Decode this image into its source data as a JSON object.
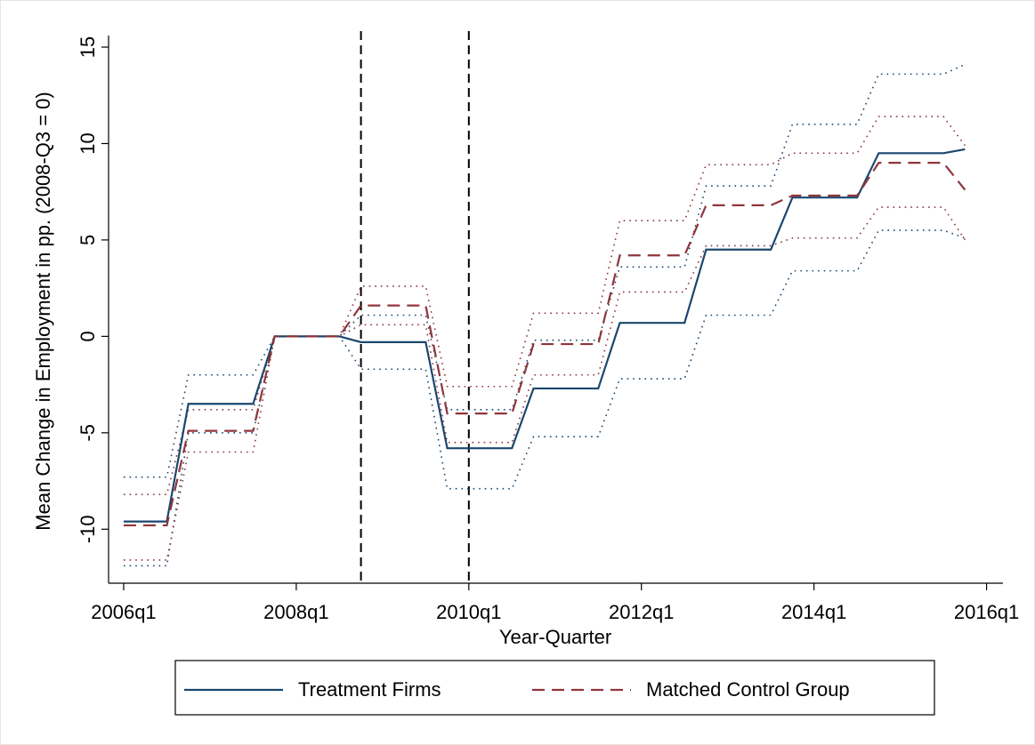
{
  "chart_data": {
    "type": "line",
    "x_label": "Year-Quarter",
    "y_label": "Mean Change in Employment in pp. (2008-Q3 = 0)",
    "x": [
      2006,
      2006.25,
      2006.5,
      2006.75,
      2007,
      2007.25,
      2007.5,
      2007.75,
      2008,
      2008.25,
      2008.5,
      2008.75,
      2009,
      2009.25,
      2009.5,
      2009.75,
      2010,
      2010.25,
      2010.5,
      2010.75,
      2011,
      2011.25,
      2011.5,
      2011.75,
      2012,
      2012.25,
      2012.5,
      2012.75,
      2013,
      2013.25,
      2013.5,
      2013.75,
      2014,
      2014.25,
      2014.5,
      2014.75,
      2015,
      2015.25,
      2015.5,
      2015.75
    ],
    "series": [
      {
        "name": "Treatment Firms",
        "color": "#1a476f",
        "dash": "solid",
        "values": [
          -9.6,
          -9.6,
          -9.6,
          -3.5,
          -3.5,
          -3.5,
          -3.5,
          0,
          0,
          0,
          0,
          -0.3,
          -0.3,
          -0.3,
          -0.3,
          -5.8,
          -5.8,
          -5.8,
          -5.8,
          -2.7,
          -2.7,
          -2.7,
          -2.7,
          0.7,
          0.7,
          0.7,
          0.7,
          4.5,
          4.5,
          4.5,
          4.5,
          7.2,
          7.2,
          7.2,
          7.2,
          9.5,
          9.5,
          9.5,
          9.5,
          9.7
        ],
        "ci_upper": [
          -7.3,
          -7.3,
          -7.3,
          -2.0,
          -2.0,
          -2.0,
          -2.0,
          0,
          0,
          0,
          0,
          1.1,
          1.1,
          1.1,
          1.1,
          -3.8,
          -3.8,
          -3.8,
          -3.8,
          -0.2,
          -0.2,
          -0.2,
          -0.2,
          3.6,
          3.6,
          3.6,
          3.6,
          7.8,
          7.8,
          7.8,
          7.8,
          11.0,
          11.0,
          11.0,
          11.0,
          13.6,
          13.6,
          13.6,
          13.6,
          14.1
        ],
        "ci_lower": [
          -11.9,
          -11.9,
          -11.9,
          -5.0,
          -5.0,
          -5.0,
          -5.0,
          0,
          0,
          0,
          0,
          -1.7,
          -1.7,
          -1.7,
          -1.7,
          -7.9,
          -7.9,
          -7.9,
          -7.9,
          -5.2,
          -5.2,
          -5.2,
          -5.2,
          -2.2,
          -2.2,
          -2.2,
          -2.2,
          1.1,
          1.1,
          1.1,
          1.1,
          3.4,
          3.4,
          3.4,
          3.4,
          5.5,
          5.5,
          5.5,
          5.5,
          5.1
        ]
      },
      {
        "name": "Matched Control Group",
        "color": "#90353b",
        "dash": "dashed",
        "values": [
          -9.8,
          -9.8,
          -9.8,
          -4.9,
          -4.9,
          -4.9,
          -4.9,
          0,
          0,
          0,
          0,
          1.6,
          1.6,
          1.6,
          1.6,
          -4.0,
          -4.0,
          -4.0,
          -4.0,
          -0.4,
          -0.4,
          -0.4,
          -0.4,
          4.2,
          4.2,
          4.2,
          4.2,
          6.8,
          6.8,
          6.8,
          6.8,
          7.3,
          7.3,
          7.3,
          7.3,
          9.0,
          9.0,
          9.0,
          9.0,
          7.6
        ],
        "ci_upper": [
          -8.2,
          -8.2,
          -8.2,
          -3.8,
          -3.8,
          -3.8,
          -3.8,
          0,
          0,
          0,
          0,
          2.6,
          2.6,
          2.6,
          2.6,
          -2.6,
          -2.6,
          -2.6,
          -2.6,
          1.2,
          1.2,
          1.2,
          1.2,
          6.0,
          6.0,
          6.0,
          6.0,
          8.9,
          8.9,
          8.9,
          8.9,
          9.5,
          9.5,
          9.5,
          9.5,
          11.4,
          11.4,
          11.4,
          11.4,
          9.9
        ],
        "ci_lower": [
          -11.6,
          -11.6,
          -11.6,
          -6.0,
          -6.0,
          -6.0,
          -6.0,
          0,
          0,
          0,
          0,
          0.6,
          0.6,
          0.6,
          0.6,
          -5.5,
          -5.5,
          -5.5,
          -5.5,
          -2.0,
          -2.0,
          -2.0,
          -2.0,
          2.3,
          2.3,
          2.3,
          2.3,
          4.7,
          4.7,
          4.7,
          4.7,
          5.1,
          5.1,
          5.1,
          5.1,
          6.7,
          6.7,
          6.7,
          6.7,
          5.0
        ]
      }
    ],
    "vlines": [
      2008.75,
      2010
    ],
    "xlim": [
      2005.825,
      2016.19
    ],
    "ylim": [
      -12.8,
      15.6
    ],
    "xticks": [
      {
        "value": 2006,
        "label": "2006q1"
      },
      {
        "value": 2008,
        "label": "2008q1"
      },
      {
        "value": 2010,
        "label": "2010q1"
      },
      {
        "value": 2012,
        "label": "2012q1"
      },
      {
        "value": 2014,
        "label": "2014q1"
      },
      {
        "value": 2016,
        "label": "2016q1"
      }
    ],
    "yticks": [
      -10,
      -5,
      0,
      5,
      10,
      15
    ],
    "grid": false,
    "legend": "bottom"
  }
}
